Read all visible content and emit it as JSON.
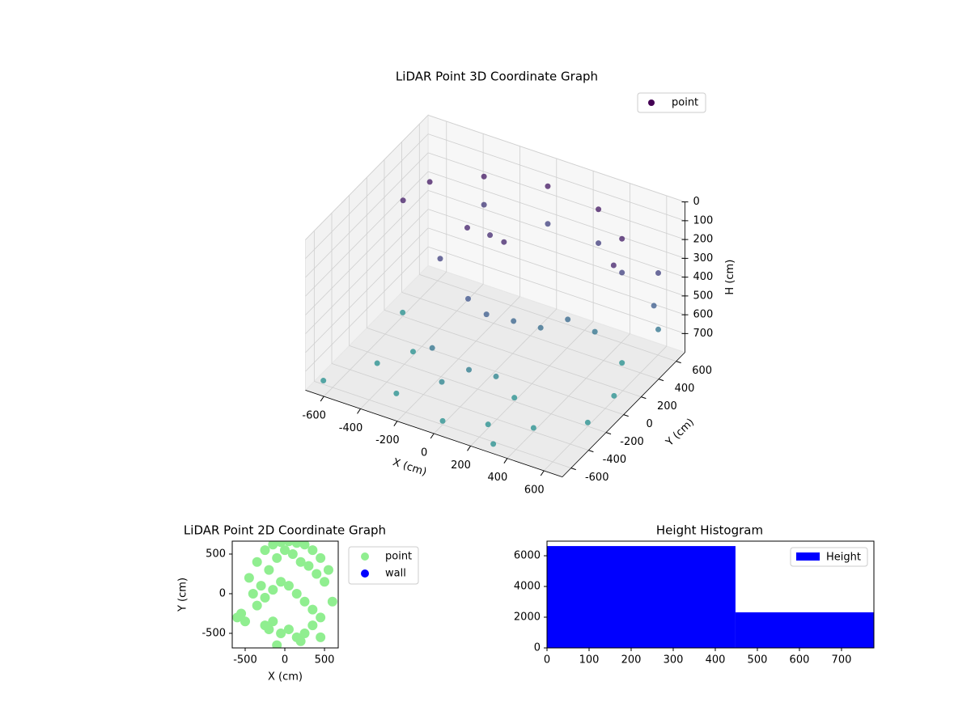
{
  "chart_data": [
    {
      "type": "scatter3d",
      "title": "LiDAR Point 3D Coordinate Graph",
      "x_label": "X (cm)",
      "y_label": "Y (cm)",
      "z_label": "H (cm)",
      "xlim": [
        -700,
        700
      ],
      "ylim": [
        -700,
        700
      ],
      "zlim": [
        0,
        800
      ],
      "z_inverted": true,
      "xticks": [
        -600,
        -400,
        -200,
        0,
        200,
        400,
        600
      ],
      "yticks": [
        -600,
        -400,
        -200,
        0,
        200,
        400,
        600
      ],
      "zticks": [
        0,
        100,
        200,
        300,
        400,
        500,
        600,
        700
      ],
      "colormap": "viridis",
      "legend": "upper right",
      "grid": true,
      "series": [
        {
          "name": "point",
          "color": "#440154",
          "x": [
            -500,
            -300,
            0,
            300,
            500,
            -550,
            550,
            -300,
            0,
            300,
            500,
            -200,
            -100,
            0,
            -300,
            -100,
            0,
            100,
            200,
            300,
            400,
            650,
            650,
            650,
            -200,
            0,
            100,
            -100,
            -500,
            -300,
            0,
            200,
            400,
            600,
            600,
            500,
            -600,
            -400,
            200,
            300,
            -650
          ],
          "y": [
            300,
            500,
            600,
            550,
            400,
            100,
            200,
            500,
            600,
            550,
            400,
            100,
            150,
            100,
            0,
            -100,
            -100,
            0,
            100,
            200,
            300,
            500,
            450,
            500,
            -300,
            -300,
            -200,
            -400,
            -300,
            -500,
            -600,
            -500,
            -400,
            -200,
            100,
            400,
            200,
            -100,
            -200,
            -650,
            -600
          ],
          "z": [
            100,
            100,
            100,
            100,
            120,
            120,
            150,
            250,
            300,
            280,
            300,
            150,
            180,
            160,
            300,
            400,
            450,
            500,
            550,
            520,
            600,
            300,
            450,
            600,
            600,
            650,
            700,
            700,
            780,
            780,
            780,
            780,
            780,
            780,
            780,
            780,
            780,
            780,
            780,
            780,
            780
          ]
        }
      ]
    },
    {
      "type": "scatter",
      "title": "LiDAR Point 2D Coordinate Graph",
      "x_label": "X (cm)",
      "y_label": "Y (cm)",
      "xlim": [
        -663,
        673
      ],
      "ylim": [
        -684,
        663
      ],
      "xticks": [
        -500,
        0,
        500
      ],
      "yticks": [
        -500,
        0,
        500
      ],
      "legend": "outside right",
      "series": [
        {
          "name": "point",
          "color": "#90ee90",
          "x": [
            -550,
            -450,
            -350,
            -250,
            -150,
            -50,
            50,
            150,
            250,
            350,
            450,
            550,
            -400,
            -300,
            -200,
            -100,
            0,
            100,
            200,
            300,
            400,
            500,
            -350,
            -250,
            -150,
            -50,
            50,
            150,
            250,
            350,
            450,
            -250,
            -150,
            -50,
            50,
            150,
            250,
            350,
            -600,
            -500,
            600,
            -100,
            200,
            450,
            -200
          ],
          "y": [
            -250,
            200,
            400,
            550,
            620,
            650,
            660,
            640,
            620,
            550,
            450,
            300,
            0,
            100,
            300,
            450,
            550,
            500,
            400,
            350,
            250,
            150,
            -150,
            -50,
            50,
            150,
            100,
            0,
            -100,
            -200,
            -300,
            -400,
            -350,
            -500,
            -450,
            -550,
            -500,
            -400,
            -300,
            -350,
            -100,
            -650,
            -600,
            -550,
            -450
          ]
        },
        {
          "name": "wall",
          "color": "#0000ff",
          "x": [],
          "y": []
        }
      ]
    },
    {
      "type": "histogram",
      "title": "Height Histogram",
      "bins": [
        0,
        448,
        777
      ],
      "values": [
        6630,
        2316
      ],
      "series_name": "Height",
      "color": "#0000ff",
      "xlim": [
        0,
        777
      ],
      "ylim": [
        0,
        6950
      ],
      "xticks": [
        0,
        100,
        200,
        300,
        400,
        500,
        600,
        700
      ],
      "yticks": [
        0,
        2000,
        4000,
        6000
      ],
      "legend": "upper right"
    }
  ]
}
